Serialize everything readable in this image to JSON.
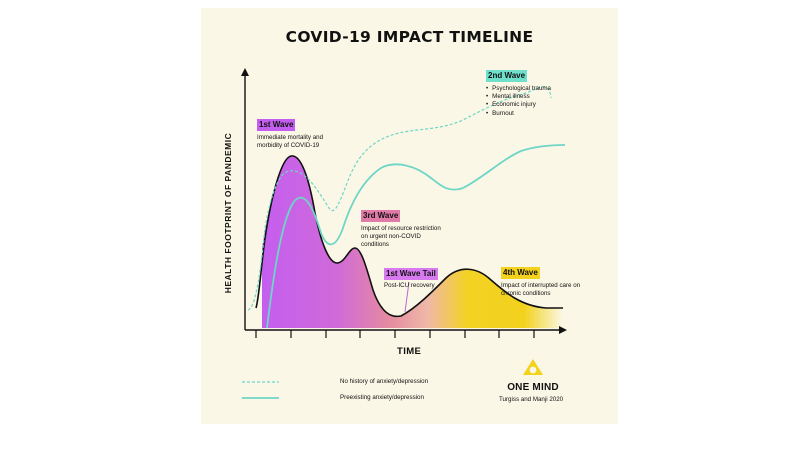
{
  "title": "COVID-19 IMPACT TIMELINE",
  "y_axis_label": "HEALTH FOOTPRINT OF PANDEMIC",
  "x_axis_label": "TIME",
  "waves": [
    {
      "label": "1st Wave",
      "description": "Immediate mortality and morbidity of COVID-19",
      "color": "#c45ef0"
    },
    {
      "label": "2nd Wave",
      "items": [
        "Psychological trauma",
        "Mental illness",
        "Economic injury",
        "Burnout"
      ],
      "color": "#6ee0cc"
    },
    {
      "label": "3rd Wave",
      "description": "Impact of resource restriction on urgent non-COVID conditions",
      "color": "#e07aa6"
    },
    {
      "label": "1st Wave Tail",
      "description": "Post-ICU recovery",
      "color": "#d77af0"
    },
    {
      "label": "4th Wave",
      "description": "Impact of interrupted care on chronic conditions",
      "color": "#f2d21c"
    }
  ],
  "legend": [
    {
      "label": "No history of anxiety/depression",
      "style": "dashed",
      "color": "#6ed6c6"
    },
    {
      "label": "Preexisting anxiety/depression",
      "style": "solid",
      "color": "#6ed6c6"
    }
  ],
  "brand": {
    "name": "ONE MIND",
    "icon": "triangle-logo-icon"
  },
  "credit": "Turgiss and Manji 2020"
}
